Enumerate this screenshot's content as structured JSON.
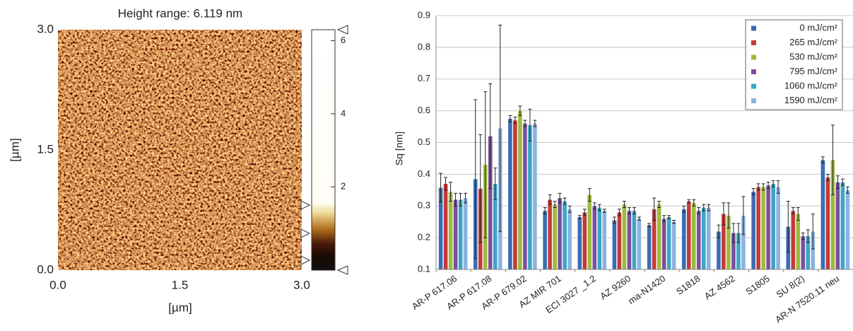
{
  "chart_data": [
    {
      "type": "height-map",
      "title": "Height range: 6.119 nm",
      "xlabel": "[µm]",
      "ylabel": "[µm]",
      "xlim": [
        0,
        3
      ],
      "ylim": [
        0,
        3
      ],
      "xticks": [
        {
          "value": 0,
          "label": "0.0"
        },
        {
          "value": 1.5,
          "label": "1.5"
        },
        {
          "value": 3,
          "label": "3.0"
        }
      ],
      "yticks": [
        {
          "value": 0,
          "label": "0.0"
        },
        {
          "value": 1.5,
          "label": "1.5"
        },
        {
          "value": 3,
          "label": "3.0"
        }
      ],
      "colorbar_lim": [
        -0.28,
        6.3
      ],
      "colorbar_ticks": [
        2,
        4,
        6
      ]
    },
    {
      "type": "bar",
      "ylabel": "Sq [nm]",
      "categories": [
        "AR-P 617.06",
        "AR-P 617.08",
        "AR-P 679.02",
        "AZ MIR 701",
        "ECI 3027 _1.2",
        "AZ 9260",
        "ma-N1420",
        "S1818",
        "AZ 4562",
        "S1805",
        "SU 8(2)",
        "AR-N 7520.11 neu"
      ],
      "ylim": [
        0.1,
        0.9
      ],
      "yticks": [
        0.1,
        0.2,
        0.3,
        0.4,
        0.5,
        0.6,
        0.7,
        0.8,
        0.9
      ],
      "grid": true,
      "legend": "top-right",
      "series": [
        {
          "name": "0 mJ/cm²",
          "color": "#3b6db4",
          "values": [
            0.358,
            0.385,
            0.575,
            0.285,
            0.265,
            0.255,
            0.24,
            0.29,
            0.22,
            0.345,
            0.235,
            0.445
          ],
          "errors": [
            0.045,
            0.25,
            0.01,
            0.01,
            0.005,
            0.01,
            0.005,
            0.01,
            0.02,
            0.01,
            0.08,
            0.01
          ]
        },
        {
          "name": "265 mJ/cm²",
          "color": "#c23b3a",
          "values": [
            0.37,
            0.355,
            0.57,
            0.32,
            0.28,
            0.28,
            0.29,
            0.315,
            0.275,
            0.36,
            0.285,
            0.39
          ],
          "errors": [
            0.02,
            0.17,
            0.01,
            0.015,
            0.01,
            0.01,
            0.035,
            0.005,
            0.035,
            0.01,
            0.01,
            0.01
          ]
        },
        {
          "name": "530 mJ/cm²",
          "color": "#9dbb3c",
          "values": [
            0.345,
            0.43,
            0.6,
            0.305,
            0.335,
            0.305,
            0.305,
            0.31,
            0.27,
            0.36,
            0.275,
            0.445
          ],
          "errors": [
            0.03,
            0.23,
            0.015,
            0.01,
            0.02,
            0.01,
            0.01,
            0.01,
            0.04,
            0.01,
            0.02,
            0.11
          ]
        },
        {
          "name": "795 mJ/cm²",
          "color": "#7b4f9d",
          "values": [
            0.32,
            0.52,
            0.56,
            0.325,
            0.3,
            0.285,
            0.26,
            0.285,
            0.215,
            0.365,
            0.205,
            0.375
          ],
          "errors": [
            0.02,
            0.165,
            0.01,
            0.015,
            0.01,
            0.01,
            0.01,
            0.01,
            0.03,
            0.01,
            0.01,
            0.02
          ]
        },
        {
          "name": "1060 mJ/cm²",
          "color": "#3aa6c6",
          "values": [
            0.32,
            0.37,
            0.555,
            0.315,
            0.295,
            0.285,
            0.265,
            0.295,
            0.215,
            0.37,
            0.205,
            0.375
          ],
          "errors": [
            0.02,
            0.05,
            0.05,
            0.01,
            0.01,
            0.01,
            0.005,
            0.01,
            0.03,
            0.01,
            0.02,
            0.01
          ]
        },
        {
          "name": "1590 mJ/cm²",
          "color": "#8db2e0",
          "values": [
            0.325,
            0.545,
            0.56,
            0.29,
            0.285,
            0.26,
            0.25,
            0.295,
            0.27,
            0.36,
            0.22,
            0.35
          ],
          "errors": [
            0.015,
            0.325,
            0.01,
            0.01,
            0.005,
            0.005,
            0.005,
            0.01,
            0.06,
            0.02,
            0.055,
            0.01
          ]
        }
      ]
    }
  ]
}
